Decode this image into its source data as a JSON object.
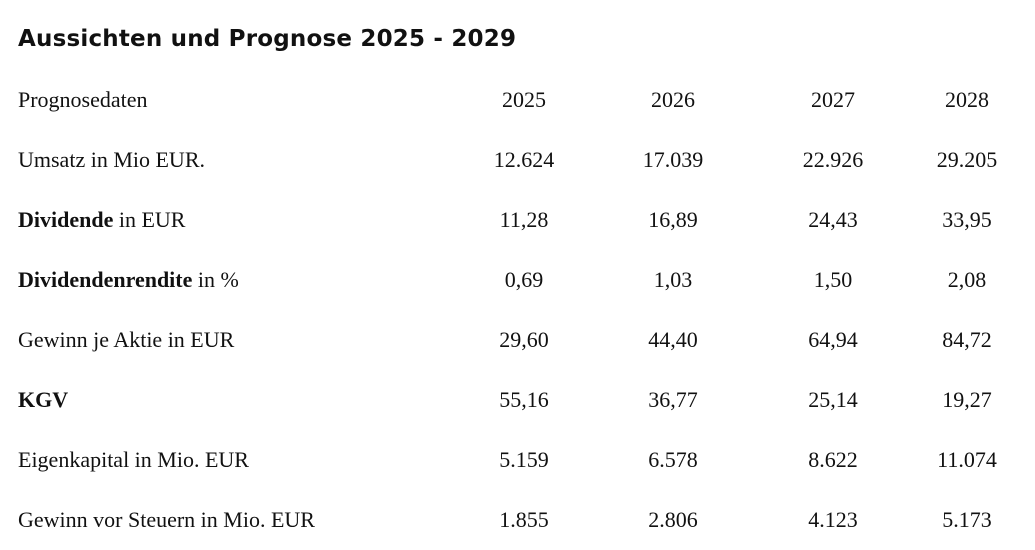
{
  "title": "Aussichten und Prognose 2025 - 2029",
  "header": {
    "label": "Prognosedaten",
    "years": [
      "2025",
      "2026",
      "2027",
      "2028"
    ]
  },
  "rows": [
    {
      "bold": "",
      "rest": "Umsatz in Mio EUR.",
      "values": [
        "12.624",
        "17.039",
        "22.926",
        "29.205"
      ]
    },
    {
      "bold": "Dividende",
      "rest": " in EUR",
      "values": [
        "11,28",
        "16,89",
        "24,43",
        "33,95"
      ]
    },
    {
      "bold": "Dividendenrendite",
      "rest": " in %",
      "values": [
        "0,69",
        "1,03",
        "1,50",
        "2,08"
      ]
    },
    {
      "bold": "",
      "rest": "Gewinn je Aktie in EUR",
      "values": [
        "29,60",
        "44,40",
        "64,94",
        "84,72"
      ]
    },
    {
      "bold": "KGV",
      "rest": "",
      "values": [
        "55,16",
        "36,77",
        "25,14",
        "19,27"
      ]
    },
    {
      "bold": "",
      "rest": "Eigenkapital in Mio. EUR",
      "values": [
        "5.159",
        "6.578",
        "8.622",
        "11.074"
      ]
    },
    {
      "bold": "",
      "rest": "Gewinn vor Steuern in Mio. EUR",
      "values": [
        "1.855",
        "2.806",
        "4.123",
        "5.173"
      ]
    }
  ]
}
